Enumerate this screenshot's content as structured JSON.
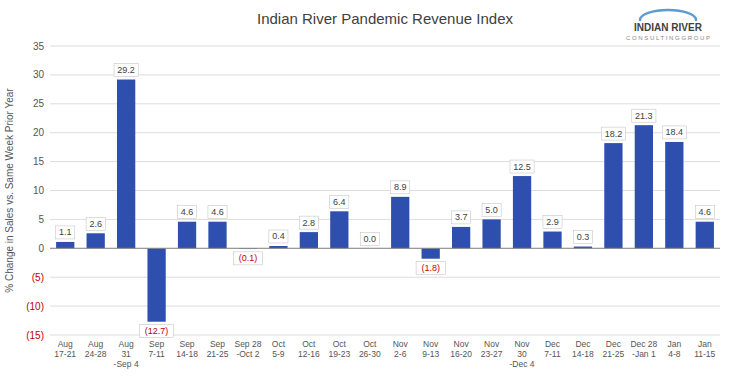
{
  "chart_data": {
    "type": "bar",
    "title": "Indian River Pandemic Revenue Index",
    "ylabel": "% Change in Sales vs. Same Week Prior Year",
    "categories": [
      "Aug\n17-21",
      "Aug\n24-28",
      "Aug\n31\n-Sep 4",
      "Sep\n7-11",
      "Sep\n14-18",
      "Sep\n21-25",
      "Sep 28\n-Oct 2",
      "Oct\n5-9",
      "Oct\n12-16",
      "Oct\n19-23",
      "Oct\n26-30",
      "Nov\n2-6",
      "Nov\n9-13",
      "Nov\n16-20",
      "Nov\n23-27",
      "Nov\n30\n-Dec 4",
      "Dec\n7-11",
      "Dec\n14-18",
      "Dec\n21-25",
      "Dec 28\n-Jan 1",
      "Jan\n4-8",
      "Jan\n11-15"
    ],
    "values": [
      1.1,
      2.6,
      29.2,
      -12.7,
      4.6,
      4.6,
      -0.1,
      0.4,
      2.8,
      6.4,
      0.0,
      8.9,
      -1.8,
      3.7,
      5.0,
      12.5,
      2.9,
      0.3,
      18.2,
      21.3,
      18.4,
      4.6
    ],
    "value_labels": [
      "1.1",
      "2.6",
      "29.2",
      "(12.7)",
      "4.6",
      "4.6",
      "(0.1)",
      "0.4",
      "2.8",
      "6.4",
      "0.0",
      "8.9",
      "(1.8)",
      "3.7",
      "5.0",
      "12.5",
      "2.9",
      "0.3",
      "18.2",
      "21.3",
      "18.4",
      "4.6"
    ],
    "data_labels": true,
    "color": "#2E4FAD",
    "ylim": [
      -15,
      35
    ],
    "yticks": [
      {
        "value": -15,
        "label": "(15)"
      },
      {
        "value": -10,
        "label": "(10)"
      },
      {
        "value": -5,
        "label": "(5)"
      },
      0,
      5,
      10,
      15,
      20,
      25,
      30,
      35
    ],
    "grid": true,
    "annotations": [
      "INDIAN RIVER",
      "C O N S U L T I N G  G R O U P"
    ]
  }
}
